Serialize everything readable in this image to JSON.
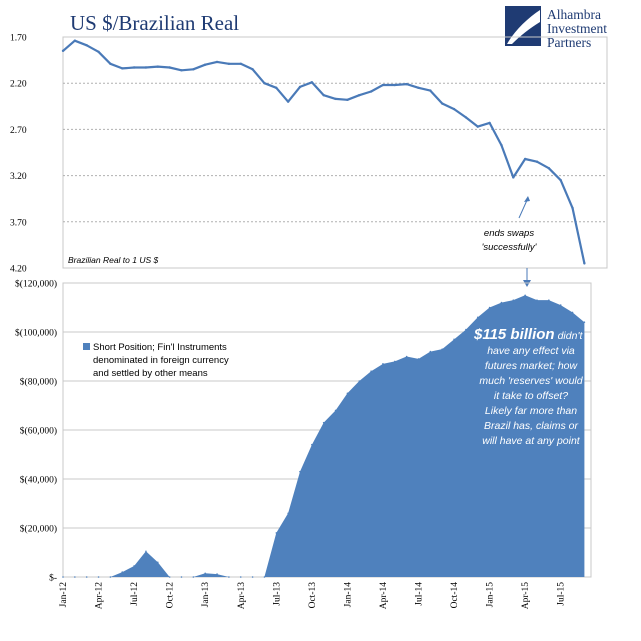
{
  "chart_data": [
    {
      "type": "line",
      "title": "US $/Brazilian Real",
      "y_note": "Brazilian Real to 1 US $",
      "y_inverted": true,
      "ylim": [
        1.7,
        4.2
      ],
      "yticks": [
        "1.70",
        "2.20",
        "2.70",
        "3.20",
        "3.70",
        "4.20"
      ],
      "grid": true,
      "color": "#4a7ab8",
      "annotation": {
        "lines": [
          "ends swaps",
          "'successfully'"
        ]
      },
      "series": [
        {
          "x": [
            "2012-01",
            "2012-02",
            "2012-03",
            "2012-04",
            "2012-05",
            "2012-06",
            "2012-07",
            "2012-08",
            "2012-09",
            "2012-10",
            "2012-11",
            "2012-12",
            "2013-01",
            "2013-02",
            "2013-03",
            "2013-04",
            "2013-05",
            "2013-06",
            "2013-07",
            "2013-08",
            "2013-09",
            "2013-10",
            "2013-11",
            "2013-12",
            "2014-01",
            "2014-02",
            "2014-03",
            "2014-04",
            "2014-05",
            "2014-06",
            "2014-07",
            "2014-08",
            "2014-09",
            "2014-10",
            "2014-11",
            "2014-12",
            "2015-01",
            "2015-02",
            "2015-03",
            "2015-04",
            "2015-05",
            "2015-06",
            "2015-07",
            "2015-08",
            "2015-09"
          ],
          "values": [
            1.85,
            1.74,
            1.79,
            1.86,
            1.99,
            2.04,
            2.03,
            2.03,
            2.02,
            2.03,
            2.06,
            2.05,
            2.0,
            1.97,
            1.99,
            1.99,
            2.05,
            2.2,
            2.25,
            2.4,
            2.24,
            2.19,
            2.33,
            2.37,
            2.38,
            2.33,
            2.29,
            2.22,
            2.22,
            2.21,
            2.25,
            2.28,
            2.42,
            2.48,
            2.57,
            2.67,
            2.63,
            2.87,
            3.22,
            3.02,
            3.05,
            3.12,
            3.25,
            3.55,
            4.15
          ]
        }
      ]
    },
    {
      "type": "area",
      "ylim": [
        0,
        120000
      ],
      "yticks": [
        "$-",
        "$(20,000)",
        "$(40,000)",
        "$(60,000)",
        "$(80,000)",
        "$(100,000)",
        "$(120,000)"
      ],
      "xticks": [
        "Jan-12",
        "Apr-12",
        "Jul-12",
        "Oct-12",
        "Jan-13",
        "Apr-13",
        "Jul-13",
        "Oct-13",
        "Jan-14",
        "Apr-14",
        "Jul-14",
        "Oct-14",
        "Jan-15",
        "Apr-15",
        "Jul-15"
      ],
      "color": "#4f81bd",
      "legend": "Short Position; Fin'l Instruments denominated in foreign currency and settled by other means",
      "legend_lines": [
        "Short Position; Fin'l Instruments",
        "denominated in foreign currency",
        "and settled by other means"
      ],
      "annotation": {
        "bold": "$115 billion",
        "lines": [
          "didn't",
          "have any effect via",
          "futures market; how",
          "much 'reserves' would",
          "it take to offset?",
          "Likely far more than",
          "Brazil has, claims or",
          "will have at any point"
        ]
      },
      "series": [
        {
          "name": "Short Position; Fin'l Instruments denominated in foreign currency and settled by other means",
          "x": [
            "2012-01",
            "2012-02",
            "2012-03",
            "2012-04",
            "2012-05",
            "2012-06",
            "2012-07",
            "2012-08",
            "2012-09",
            "2012-10",
            "2012-11",
            "2012-12",
            "2013-01",
            "2013-02",
            "2013-03",
            "2013-04",
            "2013-05",
            "2013-06",
            "2013-07",
            "2013-08",
            "2013-09",
            "2013-10",
            "2013-11",
            "2013-12",
            "2014-01",
            "2014-02",
            "2014-03",
            "2014-04",
            "2014-05",
            "2014-06",
            "2014-07",
            "2014-08",
            "2014-09",
            "2014-10",
            "2014-11",
            "2014-12",
            "2015-01",
            "2015-02",
            "2015-03",
            "2015-04",
            "2015-05",
            "2015-06",
            "2015-07",
            "2015-08",
            "2015-09"
          ],
          "values": [
            0,
            0,
            0,
            0,
            0,
            2000,
            4500,
            10500,
            6000,
            0,
            0,
            0,
            1500,
            1200,
            0,
            0,
            0,
            0,
            18000,
            26000,
            43000,
            54000,
            63000,
            68000,
            75000,
            80000,
            84000,
            87000,
            88000,
            90000,
            89000,
            92000,
            93000,
            97000,
            101000,
            106000,
            110000,
            112000,
            113000,
            115000,
            113000,
            113000,
            111000,
            108000,
            104000
          ]
        }
      ]
    }
  ],
  "logo": {
    "lines": [
      "Alhambra",
      "Investment",
      "Partners"
    ]
  }
}
